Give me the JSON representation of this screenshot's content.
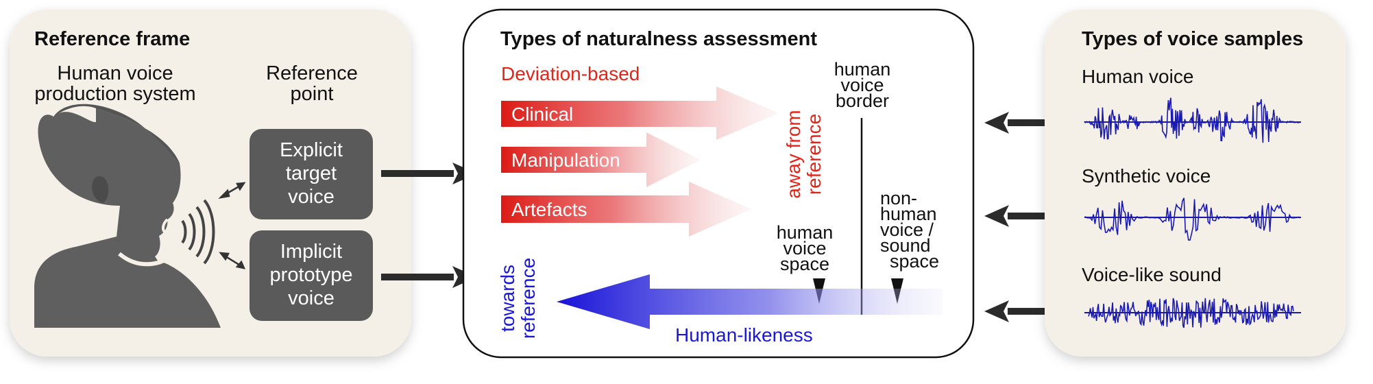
{
  "colors": {
    "panel_beige": "#f4efe7",
    "dark_box": "#5a5a5a",
    "head_gray": "#5f5f5f",
    "red": "#e0261b",
    "blue": "#1a17d6",
    "wave_blue": "#1a1ab0",
    "arrow_black": "#2b2b2b"
  },
  "left_panel": {
    "title": "Reference frame",
    "system_label_line1": "Human voice",
    "system_label_line2": "production system",
    "ref_label_line1": "Reference",
    "ref_label_line2": "point",
    "explicit_box": [
      "Explicit",
      "target",
      "voice"
    ],
    "implicit_box": [
      "Implicit",
      "prototype",
      "voice"
    ]
  },
  "center_panel": {
    "title": "Types of naturalness assessment",
    "deviation_label": "Deviation-based",
    "red_arrows": [
      "Clinical",
      "Manipulation",
      "Artefacts"
    ],
    "away_label_line1": "away from",
    "away_label_line2": "reference",
    "border_label": [
      "human",
      "voice",
      "border"
    ],
    "human_space_label": [
      "human",
      "voice",
      "space"
    ],
    "nonhuman_space_label": [
      "non-",
      "human",
      "voice /",
      "sound",
      "space"
    ],
    "towards_label_line1": "towards",
    "towards_label_line2": "reference",
    "humanlikeness_label": "Human-likeness"
  },
  "right_panel": {
    "title": "Types of voice samples",
    "samples": [
      "Human voice",
      "Synthetic voice",
      "Voice-like sound"
    ]
  }
}
